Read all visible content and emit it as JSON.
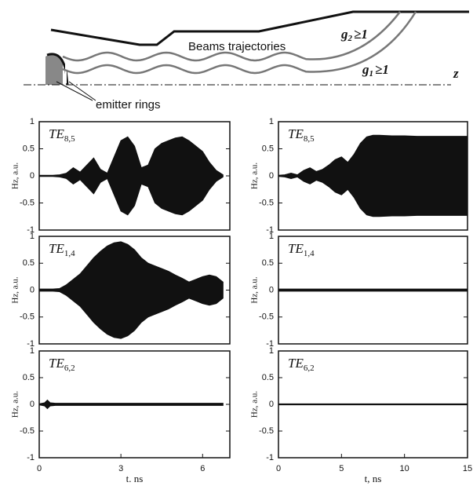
{
  "diagram": {
    "label": "Beams trajectories",
    "g2": {
      "symbol": "g",
      "index": "2",
      "relation": "≥1"
    },
    "g1": {
      "symbol": "g",
      "index": "1",
      "relation": "≥1"
    },
    "axis": "z",
    "emitter": "emitter rings"
  },
  "chart_data": [
    {
      "type": "envelope",
      "mode": "TE",
      "mode_index": "8,5",
      "ylabel": "Hz, a.u.",
      "xlim": [
        0,
        7
      ],
      "ylim": [
        -1,
        1
      ],
      "yticks": [
        -1,
        -0.5,
        0,
        0.5,
        1
      ],
      "color": "#111111",
      "x": [
        0,
        0.25,
        0.5,
        0.75,
        1,
        1.25,
        1.5,
        1.75,
        2,
        2.25,
        2.5,
        2.75,
        3,
        3.25,
        3.5,
        3.75,
        4,
        4.25,
        4.5,
        4.75,
        5,
        5.25,
        5.5,
        5.75,
        6,
        6.25,
        6.5,
        6.75
      ],
      "series": [
        {
          "values": [
            0.01,
            0.01,
            0.01,
            0.02,
            0.05,
            0.15,
            0.07,
            0.2,
            0.33,
            0.12,
            0.05,
            0.35,
            0.65,
            0.72,
            0.55,
            0.15,
            0.2,
            0.5,
            0.6,
            0.65,
            0.7,
            0.72,
            0.65,
            0.55,
            0.45,
            0.25,
            0.1,
            0.02
          ]
        }
      ]
    },
    {
      "type": "envelope",
      "mode": "TE",
      "mode_index": "1,4",
      "ylabel": "Hz, a.u.",
      "xlim": [
        0,
        7
      ],
      "ylim": [
        -1,
        1
      ],
      "yticks": [
        -1,
        -0.5,
        0,
        0.5,
        1
      ],
      "color": "#111111",
      "x": [
        0,
        0.25,
        0.5,
        0.75,
        1,
        1.25,
        1.5,
        1.75,
        2,
        2.25,
        2.5,
        2.75,
        3,
        3.25,
        3.5,
        3.75,
        4,
        4.25,
        4.5,
        4.75,
        5,
        5.25,
        5.5,
        5.75,
        6,
        6.25,
        6.5,
        6.75
      ],
      "series": [
        {
          "values": [
            0.02,
            0.02,
            0.02,
            0.03,
            0.1,
            0.2,
            0.3,
            0.45,
            0.6,
            0.72,
            0.82,
            0.88,
            0.9,
            0.85,
            0.75,
            0.6,
            0.5,
            0.45,
            0.4,
            0.35,
            0.28,
            0.22,
            0.15,
            0.2,
            0.25,
            0.28,
            0.25,
            0.15
          ]
        }
      ]
    },
    {
      "type": "envelope",
      "mode": "TE",
      "mode_index": "6,2",
      "ylabel": "Hz, a.u.",
      "xlabel": "t. ns",
      "xlim": [
        0,
        7
      ],
      "ylim": [
        -1,
        1
      ],
      "xticks": [
        0,
        3,
        6
      ],
      "yticks": [
        -1,
        -0.5,
        0,
        0.5,
        1
      ],
      "color": "#111111",
      "x": [
        0,
        0.2,
        0.3,
        0.4,
        0.6,
        1,
        2,
        3,
        4,
        5,
        6,
        6.75
      ],
      "series": [
        {
          "values": [
            0.01,
            0.03,
            0.08,
            0.03,
            0.02,
            0.02,
            0.02,
            0.02,
            0.02,
            0.02,
            0.02,
            0.02
          ]
        }
      ]
    },
    {
      "type": "envelope",
      "mode": "TE",
      "mode_index": "8,5",
      "ylabel": "Hz, a.u.",
      "xlim": [
        0,
        15
      ],
      "ylim": [
        -1,
        1
      ],
      "yticks": [
        -1,
        -0.5,
        0,
        0.5,
        1
      ],
      "color": "#111111",
      "x": [
        0,
        0.5,
        1,
        1.5,
        2,
        2.5,
        3,
        3.5,
        4,
        4.5,
        5,
        5.5,
        6,
        6.5,
        7,
        7.5,
        8,
        9,
        10,
        11,
        12,
        13,
        14,
        15
      ],
      "series": [
        {
          "values": [
            0.01,
            0.02,
            0.05,
            0.02,
            0.1,
            0.15,
            0.08,
            0.12,
            0.2,
            0.3,
            0.35,
            0.25,
            0.4,
            0.6,
            0.72,
            0.75,
            0.75,
            0.74,
            0.74,
            0.73,
            0.73,
            0.73,
            0.73,
            0.73
          ]
        }
      ]
    },
    {
      "type": "envelope",
      "mode": "TE",
      "mode_index": "1,4",
      "ylabel": "Hz, a.u.",
      "xlim": [
        0,
        15
      ],
      "ylim": [
        -1,
        1
      ],
      "yticks": [
        -1,
        -0.5,
        0,
        0.5,
        1
      ],
      "color": "#111111",
      "x": [
        0,
        3,
        6,
        9,
        12,
        15
      ],
      "series": [
        {
          "values": [
            0.02,
            0.02,
            0.02,
            0.02,
            0.02,
            0.02
          ]
        }
      ]
    },
    {
      "type": "envelope",
      "mode": "TE",
      "mode_index": "6,2",
      "ylabel": "Hz, a.u.",
      "xlabel": "t, ns",
      "xlim": [
        0,
        15
      ],
      "ylim": [
        -1,
        1
      ],
      "xticks": [
        0,
        5,
        10,
        15
      ],
      "yticks": [
        -1,
        -0.5,
        0,
        0.5,
        1
      ],
      "color": "#111111",
      "x": [
        0,
        5,
        10,
        15
      ],
      "series": [
        {
          "values": [
            0.01,
            0.01,
            0.01,
            0.01
          ]
        }
      ]
    }
  ]
}
